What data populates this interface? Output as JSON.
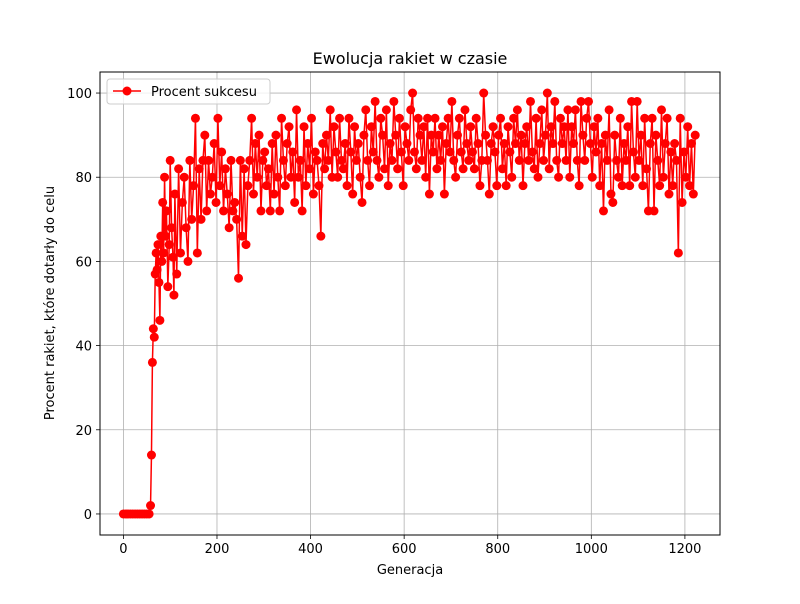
{
  "chart_data": {
    "type": "line",
    "title": "Ewolucja rakiet w czasie",
    "xlabel": "Generacja",
    "ylabel": "Procent rakiet, które dotarły do celu",
    "xlim": [
      -50,
      1275
    ],
    "ylim": [
      -5,
      105
    ],
    "x_ticks": [
      0,
      200,
      400,
      600,
      800,
      1000,
      1200
    ],
    "y_ticks": [
      0,
      20,
      40,
      60,
      80,
      100
    ],
    "grid": true,
    "legend_position": "top-left",
    "color": "#ff0000",
    "marker": "circle",
    "series": [
      {
        "name": "Procent sukcesu",
        "sampling_note": "",
        "points": [
          [
            0,
            0
          ],
          [
            5,
            0
          ],
          [
            10,
            0
          ],
          [
            15,
            0
          ],
          [
            20,
            0
          ],
          [
            25,
            0
          ],
          [
            30,
            0
          ],
          [
            35,
            0
          ],
          [
            40,
            0
          ],
          [
            45,
            0
          ],
          [
            50,
            0
          ],
          [
            55,
            0
          ],
          [
            58,
            2
          ],
          [
            60,
            14
          ],
          [
            62,
            36
          ],
          [
            64,
            44
          ],
          [
            66,
            42
          ],
          [
            68,
            57
          ],
          [
            70,
            62
          ],
          [
            72,
            58
          ],
          [
            74,
            64
          ],
          [
            76,
            55
          ],
          [
            78,
            46
          ],
          [
            80,
            66
          ],
          [
            82,
            60
          ],
          [
            84,
            74
          ],
          [
            86,
            62
          ],
          [
            88,
            80
          ],
          [
            90,
            66
          ],
          [
            92,
            72
          ],
          [
            95,
            54
          ],
          [
            98,
            64
          ],
          [
            100,
            84
          ],
          [
            103,
            68
          ],
          [
            106,
            61
          ],
          [
            108,
            52
          ],
          [
            110,
            76
          ],
          [
            114,
            57
          ],
          [
            118,
            82
          ],
          [
            122,
            62
          ],
          [
            126,
            74
          ],
          [
            130,
            80
          ],
          [
            134,
            68
          ],
          [
            138,
            60
          ],
          [
            142,
            84
          ],
          [
            146,
            70
          ],
          [
            150,
            78
          ],
          [
            154,
            94
          ],
          [
            158,
            62
          ],
          [
            162,
            82
          ],
          [
            166,
            70
          ],
          [
            170,
            84
          ],
          [
            174,
            90
          ],
          [
            178,
            72
          ],
          [
            182,
            84
          ],
          [
            186,
            76
          ],
          [
            190,
            80
          ],
          [
            194,
            88
          ],
          [
            198,
            74
          ],
          [
            202,
            94
          ],
          [
            206,
            78
          ],
          [
            210,
            86
          ],
          [
            214,
            72
          ],
          [
            218,
            82
          ],
          [
            222,
            76
          ],
          [
            226,
            68
          ],
          [
            230,
            84
          ],
          [
            234,
            72
          ],
          [
            238,
            74
          ],
          [
            242,
            70
          ],
          [
            246,
            56
          ],
          [
            250,
            84
          ],
          [
            254,
            66
          ],
          [
            258,
            82
          ],
          [
            262,
            64
          ],
          [
            266,
            78
          ],
          [
            270,
            84
          ],
          [
            274,
            94
          ],
          [
            278,
            76
          ],
          [
            282,
            88
          ],
          [
            286,
            80
          ],
          [
            290,
            90
          ],
          [
            294,
            72
          ],
          [
            298,
            84
          ],
          [
            302,
            86
          ],
          [
            306,
            78
          ],
          [
            310,
            82
          ],
          [
            314,
            72
          ],
          [
            318,
            88
          ],
          [
            322,
            76
          ],
          [
            326,
            90
          ],
          [
            330,
            80
          ],
          [
            334,
            72
          ],
          [
            338,
            94
          ],
          [
            342,
            84
          ],
          [
            346,
            78
          ],
          [
            350,
            88
          ],
          [
            354,
            92
          ],
          [
            358,
            80
          ],
          [
            362,
            86
          ],
          [
            366,
            74
          ],
          [
            370,
            96
          ],
          [
            374,
            80
          ],
          [
            378,
            84
          ],
          [
            382,
            72
          ],
          [
            386,
            92
          ],
          [
            390,
            78
          ],
          [
            394,
            88
          ],
          [
            398,
            82
          ],
          [
            402,
            94
          ],
          [
            406,
            76
          ],
          [
            410,
            86
          ],
          [
            414,
            84
          ],
          [
            418,
            78
          ],
          [
            422,
            66
          ],
          [
            426,
            88
          ],
          [
            430,
            82
          ],
          [
            434,
            90
          ],
          [
            438,
            84
          ],
          [
            442,
            96
          ],
          [
            446,
            80
          ],
          [
            450,
            92
          ],
          [
            454,
            86
          ],
          [
            458,
            80
          ],
          [
            462,
            94
          ],
          [
            466,
            84
          ],
          [
            470,
            82
          ],
          [
            474,
            88
          ],
          [
            478,
            78
          ],
          [
            482,
            94
          ],
          [
            486,
            86
          ],
          [
            490,
            76
          ],
          [
            494,
            92
          ],
          [
            498,
            84
          ],
          [
            502,
            88
          ],
          [
            506,
            80
          ],
          [
            510,
            74
          ],
          [
            514,
            90
          ],
          [
            518,
            96
          ],
          [
            522,
            84
          ],
          [
            526,
            78
          ],
          [
            530,
            92
          ],
          [
            534,
            86
          ],
          [
            538,
            98
          ],
          [
            542,
            84
          ],
          [
            546,
            80
          ],
          [
            550,
            94
          ],
          [
            554,
            90
          ],
          [
            558,
            82
          ],
          [
            562,
            96
          ],
          [
            566,
            78
          ],
          [
            570,
            88
          ],
          [
            574,
            84
          ],
          [
            578,
            98
          ],
          [
            582,
            90
          ],
          [
            586,
            82
          ],
          [
            590,
            94
          ],
          [
            594,
            86
          ],
          [
            598,
            78
          ],
          [
            602,
            92
          ],
          [
            606,
            88
          ],
          [
            610,
            84
          ],
          [
            614,
            96
          ],
          [
            618,
            100
          ],
          [
            622,
            86
          ],
          [
            626,
            82
          ],
          [
            630,
            94
          ],
          [
            634,
            90
          ],
          [
            638,
            84
          ],
          [
            642,
            92
          ],
          [
            646,
            80
          ],
          [
            650,
            94
          ],
          [
            654,
            76
          ],
          [
            658,
            90
          ],
          [
            662,
            86
          ],
          [
            666,
            94
          ],
          [
            670,
            82
          ],
          [
            674,
            90
          ],
          [
            678,
            84
          ],
          [
            682,
            92
          ],
          [
            686,
            76
          ],
          [
            690,
            88
          ],
          [
            694,
            94
          ],
          [
            698,
            86
          ],
          [
            702,
            98
          ],
          [
            706,
            84
          ],
          [
            710,
            80
          ],
          [
            714,
            90
          ],
          [
            718,
            94
          ],
          [
            722,
            86
          ],
          [
            726,
            82
          ],
          [
            730,
            96
          ],
          [
            734,
            88
          ],
          [
            738,
            84
          ],
          [
            742,
            92
          ],
          [
            746,
            86
          ],
          [
            750,
            82
          ],
          [
            754,
            94
          ],
          [
            758,
            88
          ],
          [
            762,
            78
          ],
          [
            766,
            84
          ],
          [
            770,
            100
          ],
          [
            774,
            90
          ],
          [
            778,
            84
          ],
          [
            782,
            76
          ],
          [
            786,
            88
          ],
          [
            790,
            92
          ],
          [
            794,
            86
          ],
          [
            798,
            78
          ],
          [
            802,
            90
          ],
          [
            806,
            94
          ],
          [
            810,
            82
          ],
          [
            814,
            88
          ],
          [
            818,
            78
          ],
          [
            822,
            92
          ],
          [
            826,
            86
          ],
          [
            830,
            80
          ],
          [
            834,
            94
          ],
          [
            838,
            88
          ],
          [
            842,
            96
          ],
          [
            846,
            84
          ],
          [
            850,
            90
          ],
          [
            854,
            78
          ],
          [
            858,
            88
          ],
          [
            862,
            92
          ],
          [
            866,
            84
          ],
          [
            870,
            98
          ],
          [
            874,
            86
          ],
          [
            878,
            82
          ],
          [
            882,
            94
          ],
          [
            886,
            80
          ],
          [
            890,
            88
          ],
          [
            894,
            96
          ],
          [
            898,
            84
          ],
          [
            902,
            90
          ],
          [
            906,
            100
          ],
          [
            910,
            82
          ],
          [
            914,
            92
          ],
          [
            918,
            88
          ],
          [
            922,
            98
          ],
          [
            926,
            84
          ],
          [
            930,
            80
          ],
          [
            934,
            94
          ],
          [
            938,
            88
          ],
          [
            942,
            92
          ],
          [
            946,
            84
          ],
          [
            950,
            96
          ],
          [
            954,
            80
          ],
          [
            958,
            92
          ],
          [
            962,
            88
          ],
          [
            966,
            96
          ],
          [
            970,
            84
          ],
          [
            974,
            78
          ],
          [
            978,
            98
          ],
          [
            982,
            90
          ],
          [
            986,
            84
          ],
          [
            990,
            94
          ],
          [
            994,
            98
          ],
          [
            998,
            88
          ],
          [
            1002,
            80
          ],
          [
            1006,
            92
          ],
          [
            1010,
            86
          ],
          [
            1014,
            94
          ],
          [
            1018,
            78
          ],
          [
            1022,
            88
          ],
          [
            1026,
            72
          ],
          [
            1030,
            90
          ],
          [
            1034,
            84
          ],
          [
            1038,
            96
          ],
          [
            1042,
            76
          ],
          [
            1046,
            74
          ],
          [
            1050,
            90
          ],
          [
            1054,
            84
          ],
          [
            1058,
            80
          ],
          [
            1062,
            94
          ],
          [
            1066,
            78
          ],
          [
            1070,
            88
          ],
          [
            1074,
            84
          ],
          [
            1078,
            92
          ],
          [
            1082,
            78
          ],
          [
            1086,
            98
          ],
          [
            1090,
            86
          ],
          [
            1094,
            80
          ],
          [
            1098,
            98
          ],
          [
            1102,
            84
          ],
          [
            1106,
            90
          ],
          [
            1110,
            78
          ],
          [
            1114,
            94
          ],
          [
            1118,
            82
          ],
          [
            1122,
            72
          ],
          [
            1126,
            88
          ],
          [
            1130,
            94
          ],
          [
            1134,
            72
          ],
          [
            1138,
            90
          ],
          [
            1142,
            84
          ],
          [
            1146,
            78
          ],
          [
            1150,
            96
          ],
          [
            1154,
            80
          ],
          [
            1158,
            88
          ],
          [
            1162,
            94
          ],
          [
            1166,
            76
          ],
          [
            1170,
            86
          ],
          [
            1174,
            78
          ],
          [
            1178,
            88
          ],
          [
            1182,
            84
          ],
          [
            1186,
            62
          ],
          [
            1190,
            94
          ],
          [
            1194,
            74
          ],
          [
            1198,
            86
          ],
          [
            1202,
            80
          ],
          [
            1206,
            92
          ],
          [
            1210,
            78
          ],
          [
            1214,
            88
          ],
          [
            1218,
            76
          ],
          [
            1222,
            90
          ]
        ]
      }
    ]
  }
}
